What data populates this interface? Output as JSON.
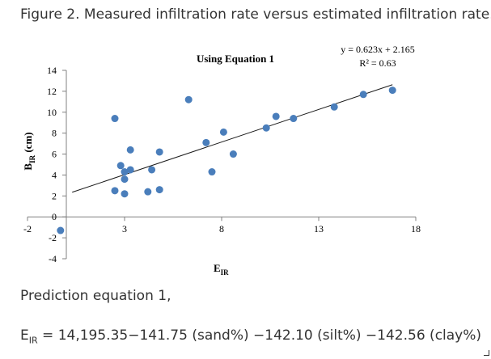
{
  "caption": "Figure 2. Measured infiltration rate versus estimated infiltration rate.",
  "chart_data": {
    "type": "scatter",
    "title": "Using Equation 1",
    "xlabel": {
      "main": "E",
      "sub": "IR"
    },
    "ylabel": {
      "main": "B",
      "sub": "IR",
      "unit": " (cm)"
    },
    "xlim": [
      -2,
      18
    ],
    "ylim": [
      -4,
      14
    ],
    "x_ticks": [
      -2,
      3,
      8,
      13,
      18
    ],
    "y_ticks": [
      -4,
      -2,
      0,
      2,
      4,
      6,
      8,
      10,
      12,
      14
    ],
    "x_tick_labels": [
      "-2",
      "3",
      "8",
      "13",
      "18"
    ],
    "y_tick_labels": [
      "-4",
      "-2",
      "0",
      "2",
      "4",
      "6",
      "8",
      "10",
      "12",
      "14"
    ],
    "marker_color": "#4a7ebb",
    "trendline": {
      "slope": 0.623,
      "intercept": 2.165,
      "x_range": [
        0.3,
        16.8
      ],
      "equation_label": "y = 0.623x + 2.165",
      "r2_label": "R² = 0.63"
    },
    "points": [
      {
        "x": -0.3,
        "y": -1.3
      },
      {
        "x": 2.5,
        "y": 9.4
      },
      {
        "x": 2.5,
        "y": 2.5
      },
      {
        "x": 2.8,
        "y": 4.9
      },
      {
        "x": 3.0,
        "y": 4.3
      },
      {
        "x": 3.0,
        "y": 3.6
      },
      {
        "x": 3.0,
        "y": 2.2
      },
      {
        "x": 3.3,
        "y": 6.4
      },
      {
        "x": 3.3,
        "y": 4.5
      },
      {
        "x": 4.2,
        "y": 2.4
      },
      {
        "x": 4.4,
        "y": 4.5
      },
      {
        "x": 4.8,
        "y": 6.2
      },
      {
        "x": 4.8,
        "y": 2.6
      },
      {
        "x": 6.3,
        "y": 11.2
      },
      {
        "x": 7.2,
        "y": 7.1
      },
      {
        "x": 7.5,
        "y": 4.3
      },
      {
        "x": 8.1,
        "y": 8.1
      },
      {
        "x": 8.6,
        "y": 6.0
      },
      {
        "x": 10.3,
        "y": 8.5
      },
      {
        "x": 10.8,
        "y": 9.6
      },
      {
        "x": 11.7,
        "y": 9.4
      },
      {
        "x": 13.8,
        "y": 10.5
      },
      {
        "x": 15.3,
        "y": 11.7
      },
      {
        "x": 16.8,
        "y": 12.1
      }
    ]
  },
  "prediction_heading": "Prediction equation 1,",
  "formula": {
    "lhs": "E",
    "lhs_sub": "IR",
    "rhs": " = 14,195.35−141.75 (sand%) −142.10 (silt%) −142.56 (clay%)"
  }
}
